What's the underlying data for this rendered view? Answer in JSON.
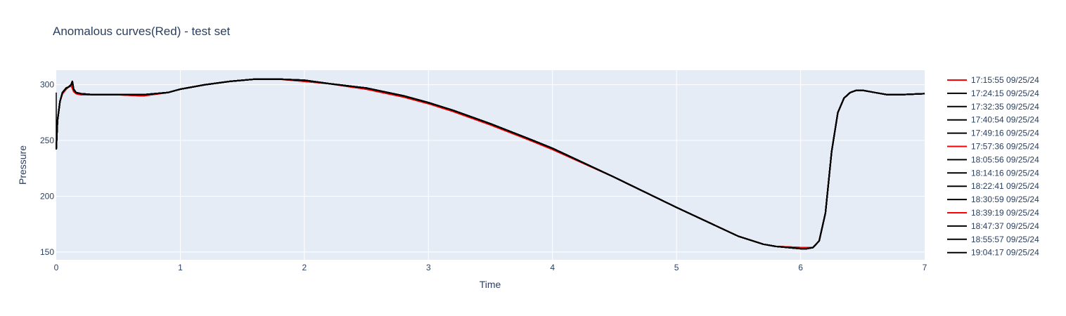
{
  "chart_data": {
    "type": "line",
    "title": "Anomalous curves(Red) - test set",
    "xlabel": "Time",
    "ylabel": "Pressure",
    "xlim": [
      0,
      7
    ],
    "ylim": [
      143,
      313
    ],
    "xticks": [
      0,
      1,
      2,
      3,
      4,
      5,
      6,
      7
    ],
    "yticks": [
      150,
      200,
      250,
      300
    ],
    "grid": true,
    "legend_position": "right",
    "colors": {
      "anomalous": "#ff0000",
      "normal": "#000000",
      "plot_bg": "#e5ecf6",
      "grid": "#ffffff",
      "text": "#2a3f5f"
    },
    "x": [
      0,
      0.01,
      0.03,
      0.05,
      0.08,
      0.1,
      0.12,
      0.13,
      0.14,
      0.16,
      0.2,
      0.3,
      0.5,
      0.7,
      0.9,
      1.0,
      1.2,
      1.4,
      1.6,
      1.7,
      1.8,
      2.0,
      2.2,
      2.5,
      2.8,
      3.0,
      3.2,
      3.5,
      3.8,
      4.0,
      4.5,
      5.0,
      5.5,
      5.7,
      5.8,
      6.0,
      6.05,
      6.1,
      6.15,
      6.2,
      6.25,
      6.3,
      6.35,
      6.4,
      6.45,
      6.5,
      6.6,
      6.7,
      6.8,
      7.0
    ],
    "series": [
      {
        "name": "17:15:55 09/25/24",
        "color": "#ff0000",
        "anomalous": true,
        "y": [
          243,
          268,
          285,
          292,
          296,
          298,
          299,
          297,
          294,
          292,
          291,
          291,
          291,
          290,
          293,
          296,
          300,
          303,
          305,
          305,
          305,
          303,
          301,
          296,
          289,
          283,
          276,
          264,
          251,
          242,
          217,
          190,
          164,
          157,
          155,
          154,
          154,
          154,
          160,
          185,
          240,
          275,
          288,
          293,
          295,
          295,
          293,
          291,
          291,
          292
        ]
      },
      {
        "name": "17:24:15 09/25/24",
        "color": "#000000",
        "anomalous": false,
        "y": [
          242,
          268,
          285,
          293,
          297,
          298,
          300,
          303,
          296,
          293,
          292,
          291,
          291,
          291,
          293,
          296,
          300,
          303,
          305,
          305,
          305,
          304,
          301,
          297,
          290,
          284,
          277,
          265,
          252,
          243,
          217,
          190,
          164,
          157,
          155,
          153,
          153,
          154,
          160,
          185,
          240,
          275,
          288,
          293,
          295,
          295,
          293,
          291,
          291,
          292
        ]
      },
      {
        "name": "17:32:35 09/25/24",
        "color": "#000000",
        "anomalous": false,
        "y": [
          242,
          268,
          285,
          293,
          297,
          298,
          300,
          303,
          296,
          293,
          292,
          291,
          291,
          291,
          293,
          296,
          300,
          303,
          305,
          305,
          305,
          304,
          301,
          297,
          290,
          284,
          277,
          265,
          252,
          243,
          217,
          190,
          164,
          157,
          155,
          153,
          153,
          154,
          160,
          185,
          240,
          275,
          288,
          293,
          295,
          295,
          293,
          291,
          291,
          292
        ]
      },
      {
        "name": "17:40:54 09/25/24",
        "color": "#000000",
        "anomalous": false,
        "y": [
          242,
          268,
          285,
          293,
          297,
          298,
          300,
          303,
          296,
          293,
          292,
          291,
          291,
          291,
          293,
          296,
          300,
          303,
          305,
          305,
          305,
          304,
          301,
          297,
          290,
          284,
          277,
          265,
          252,
          243,
          217,
          190,
          164,
          157,
          155,
          153,
          153,
          154,
          160,
          185,
          240,
          275,
          288,
          293,
          295,
          295,
          293,
          291,
          291,
          292
        ]
      },
      {
        "name": "17:49:16 09/25/24",
        "color": "#000000",
        "anomalous": false,
        "y": [
          242,
          268,
          285,
          293,
          297,
          298,
          300,
          303,
          296,
          293,
          292,
          291,
          291,
          291,
          293,
          296,
          300,
          303,
          305,
          305,
          305,
          304,
          301,
          297,
          290,
          284,
          277,
          265,
          252,
          243,
          217,
          190,
          164,
          157,
          155,
          153,
          153,
          154,
          160,
          185,
          240,
          275,
          288,
          293,
          295,
          295,
          293,
          291,
          291,
          292
        ]
      },
      {
        "name": "17:57:36 09/25/24",
        "color": "#ff0000",
        "anomalous": true,
        "y": [
          243,
          268,
          285,
          292,
          296,
          298,
          299,
          297,
          294,
          292,
          291,
          291,
          291,
          290,
          293,
          296,
          300,
          303,
          305,
          305,
          305,
          303,
          301,
          296,
          289,
          283,
          276,
          264,
          251,
          242,
          217,
          190,
          164,
          157,
          155,
          154,
          154,
          154,
          160,
          185,
          240,
          275,
          288,
          293,
          295,
          295,
          293,
          291,
          291,
          292
        ]
      },
      {
        "name": "18:05:56 09/25/24",
        "color": "#000000",
        "anomalous": false,
        "y": [
          242,
          268,
          285,
          293,
          297,
          298,
          300,
          303,
          296,
          293,
          292,
          291,
          291,
          291,
          293,
          296,
          300,
          303,
          305,
          305,
          305,
          304,
          301,
          297,
          290,
          284,
          277,
          265,
          252,
          243,
          217,
          190,
          164,
          157,
          155,
          153,
          153,
          154,
          160,
          185,
          240,
          275,
          288,
          293,
          295,
          295,
          293,
          291,
          291,
          292
        ]
      },
      {
        "name": "18:14:16 09/25/24",
        "color": "#000000",
        "anomalous": false,
        "y": [
          242,
          268,
          285,
          293,
          297,
          298,
          300,
          303,
          296,
          293,
          292,
          291,
          291,
          291,
          293,
          296,
          300,
          303,
          305,
          305,
          305,
          304,
          301,
          297,
          290,
          284,
          277,
          265,
          252,
          243,
          217,
          190,
          164,
          157,
          155,
          153,
          153,
          154,
          160,
          185,
          240,
          275,
          288,
          293,
          295,
          295,
          293,
          291,
          291,
          292
        ]
      },
      {
        "name": "18:22:41 09/25/24",
        "color": "#000000",
        "anomalous": false,
        "y": [
          242,
          268,
          285,
          293,
          297,
          298,
          300,
          303,
          296,
          293,
          292,
          291,
          291,
          291,
          293,
          296,
          300,
          303,
          305,
          305,
          305,
          304,
          301,
          297,
          290,
          284,
          277,
          265,
          252,
          243,
          217,
          190,
          164,
          157,
          155,
          153,
          153,
          154,
          160,
          185,
          240,
          275,
          288,
          293,
          295,
          295,
          293,
          291,
          291,
          292
        ]
      },
      {
        "name": "18:30:59 09/25/24",
        "color": "#000000",
        "anomalous": false,
        "y": [
          242,
          268,
          285,
          293,
          297,
          298,
          300,
          303,
          296,
          293,
          292,
          291,
          291,
          291,
          293,
          296,
          300,
          303,
          305,
          305,
          305,
          304,
          301,
          297,
          290,
          284,
          277,
          265,
          252,
          243,
          217,
          190,
          164,
          157,
          155,
          153,
          153,
          154,
          160,
          185,
          240,
          275,
          288,
          293,
          295,
          295,
          293,
          291,
          291,
          292
        ]
      },
      {
        "name": "18:39:19 09/25/24",
        "color": "#ff0000",
        "anomalous": true,
        "y": [
          243,
          268,
          285,
          292,
          296,
          298,
          299,
          297,
          294,
          292,
          291,
          291,
          291,
          290,
          293,
          296,
          300,
          303,
          305,
          305,
          305,
          303,
          301,
          296,
          289,
          283,
          276,
          264,
          251,
          242,
          217,
          190,
          164,
          157,
          155,
          154,
          154,
          154,
          160,
          185,
          240,
          275,
          288,
          293,
          295,
          295,
          293,
          291,
          291,
          292
        ]
      },
      {
        "name": "18:47:37 09/25/24",
        "color": "#000000",
        "anomalous": false,
        "y": [
          242,
          268,
          285,
          293,
          297,
          298,
          300,
          303,
          296,
          293,
          292,
          291,
          291,
          291,
          293,
          296,
          300,
          303,
          305,
          305,
          305,
          304,
          301,
          297,
          290,
          284,
          277,
          265,
          252,
          243,
          217,
          190,
          164,
          157,
          155,
          153,
          153,
          154,
          160,
          185,
          240,
          275,
          288,
          293,
          295,
          295,
          293,
          291,
          291,
          292
        ]
      },
      {
        "name": "18:55:57 09/25/24",
        "color": "#000000",
        "anomalous": false,
        "y": [
          242,
          268,
          285,
          293,
          297,
          298,
          300,
          303,
          296,
          293,
          292,
          291,
          291,
          291,
          293,
          296,
          300,
          303,
          305,
          305,
          305,
          304,
          301,
          297,
          290,
          284,
          277,
          265,
          252,
          243,
          217,
          190,
          164,
          157,
          155,
          153,
          153,
          154,
          160,
          185,
          240,
          275,
          288,
          293,
          295,
          295,
          293,
          291,
          291,
          292
        ]
      },
      {
        "name": "19:04:17 09/25/24",
        "color": "#000000",
        "anomalous": false,
        "y": [
          242,
          268,
          285,
          293,
          297,
          298,
          300,
          303,
          296,
          293,
          292,
          291,
          291,
          291,
          293,
          296,
          300,
          303,
          305,
          305,
          305,
          304,
          301,
          297,
          290,
          284,
          277,
          265,
          252,
          243,
          217,
          190,
          164,
          157,
          155,
          153,
          153,
          154,
          160,
          185,
          240,
          275,
          288,
          293,
          295,
          295,
          293,
          291,
          291,
          292
        ]
      }
    ]
  }
}
